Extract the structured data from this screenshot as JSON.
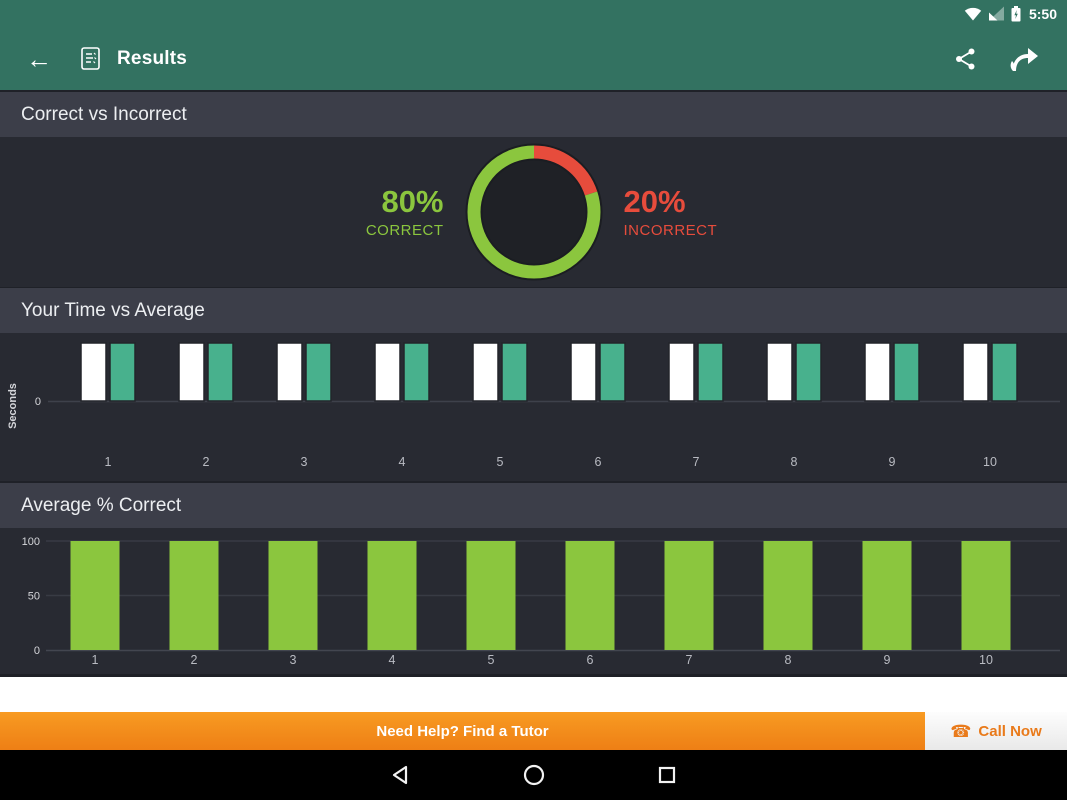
{
  "status_bar": {
    "time": "5:50",
    "icons": [
      "wifi-icon",
      "cellular-signal-icon",
      "battery-charging-icon"
    ]
  },
  "app_bar": {
    "title": "Results",
    "icons": [
      "back-arrow-icon",
      "results-doc-icon",
      "share-icon",
      "forward-arrow-icon"
    ]
  },
  "sections": {
    "correct": {
      "header": "Correct vs Incorrect"
    },
    "time": {
      "header": "Your Time vs Average"
    },
    "average": {
      "header": "Average % Correct"
    }
  },
  "donut_stats": {
    "correct_pct": "80%",
    "correct_label": "CORRECT",
    "incorrect_pct": "20%",
    "incorrect_label": "INCORRECT"
  },
  "banner": {
    "text": "Need Help? Find a Tutor",
    "call_label": "Call Now",
    "phone_glyph": "☎"
  },
  "nav_bar": {
    "icons": [
      "back-triangle-icon",
      "home-circle-icon",
      "recents-square-icon"
    ]
  },
  "colors": {
    "app_green": "#337261",
    "header_bg": "#3c3e49",
    "panel_bg": "#282a32",
    "accent_green": "#8bc63e",
    "accent_red": "#e74c3c",
    "accent_teal": "#48b18d",
    "banner_orange": "#f68b1e",
    "call_orange": "#e97a1a"
  },
  "chart_data": [
    {
      "type": "pie",
      "style": "donut",
      "title": "Correct vs Incorrect",
      "slices": [
        {
          "label": "CORRECT",
          "value": 80,
          "color": "#8bc63e"
        },
        {
          "label": "INCORRECT",
          "value": 20,
          "color": "#e74c3c"
        }
      ],
      "start": "top",
      "direction": "clockwise",
      "note": "Red 20% slice starts at 12 o'clock going clockwise; green fills the rest; dark inner disc"
    },
    {
      "type": "bar",
      "title": "Your Time vs Average",
      "categories": [
        "1",
        "2",
        "3",
        "4",
        "5",
        "6",
        "7",
        "8",
        "9",
        "10"
      ],
      "series": [
        {
          "name": "Your Time",
          "color": "#ffffff",
          "values": [
            1,
            1,
            1,
            1,
            1,
            1,
            1,
            1,
            1,
            1
          ]
        },
        {
          "name": "Average",
          "color": "#48b18d",
          "values": [
            1,
            1,
            1,
            1,
            1,
            1,
            1,
            1,
            1,
            1
          ]
        }
      ],
      "xlabel": "",
      "ylabel": "Seconds",
      "yticks": [
        "0"
      ],
      "grid": false,
      "note": "All 20 bars render at identical height above the 0 baseline; numeric scale is not labeled in the screenshot"
    },
    {
      "type": "bar",
      "title": "Average % Correct",
      "categories": [
        "1",
        "2",
        "3",
        "4",
        "5",
        "6",
        "7",
        "8",
        "9",
        "10"
      ],
      "values": [
        100,
        100,
        100,
        100,
        100,
        100,
        100,
        100,
        100,
        100
      ],
      "color": "#8bc63e",
      "xlabel": "",
      "ylabel": "",
      "yticks": [
        0,
        50,
        100
      ],
      "ylim": [
        0,
        100
      ],
      "grid": true
    }
  ]
}
